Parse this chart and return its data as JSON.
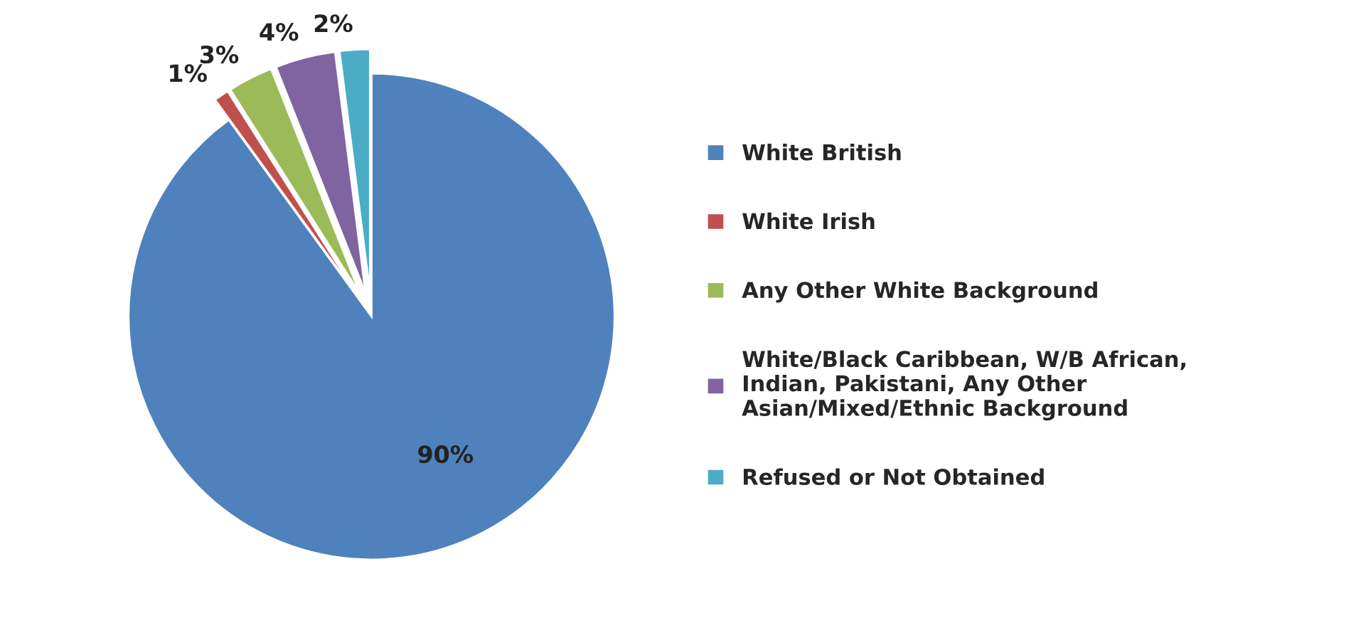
{
  "chart_data": {
    "type": "pie",
    "categories": [
      "White British",
      "White Irish",
      "Any Other White Background",
      "White/Black Caribbean, W/B African,\nIndian, Pakistani, Any Other\nAsian/Mixed/Ethnic Background",
      "Refused or Not Obtained"
    ],
    "values": [
      90,
      1,
      3,
      4,
      2
    ],
    "value_labels": [
      "90%",
      "1%",
      "3%",
      "4%",
      "2%"
    ],
    "colors": [
      "#4f81bd",
      "#c0504d",
      "#9bbb59",
      "#8064a2",
      "#4bacc6"
    ],
    "legend": "right"
  }
}
